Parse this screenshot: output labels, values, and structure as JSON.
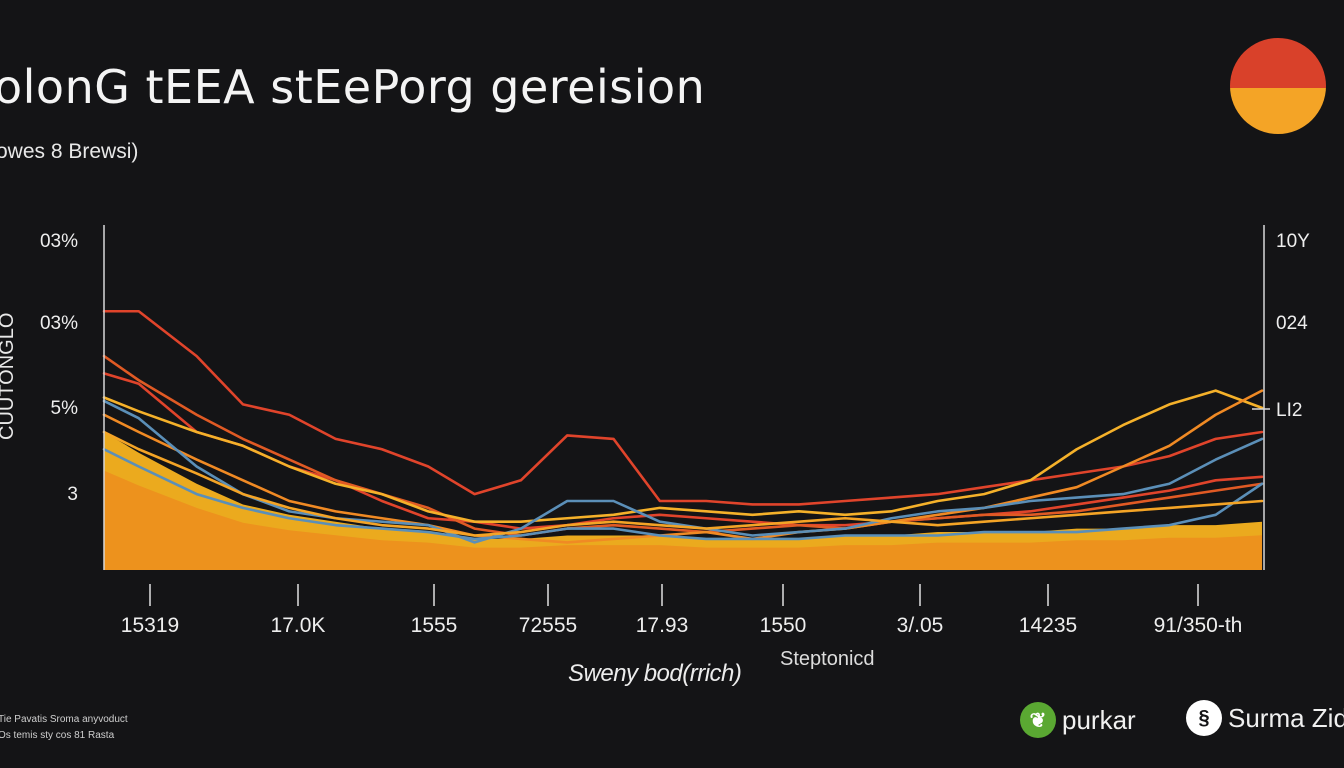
{
  "title": "OLONG TEEA STEEPORG GEREISION",
  "title_display": "olonG tEEA stEePorg gereision",
  "subtitle": "owes 8 Brewsi)",
  "y_axis_label": "CUUTONGLO",
  "x_axis_label": "Sweny bod(rrich)",
  "x_axis_label_secondary": "Steptonicd",
  "footnote_lines": [
    "Tie Pavatis Sroma anyvoduct",
    "Os temis sty cos 81 Rasta"
  ],
  "brands": [
    {
      "name": "purkar",
      "icon": "leaf-icon",
      "color": "#5aa832"
    },
    {
      "name": "Surma Zid",
      "icon": "swirl-icon",
      "color": "#ffffff"
    }
  ],
  "colors": {
    "background": "#141416",
    "sun_top": "#d9412a",
    "sun_bottom": "#f4a426",
    "red": "#e0442b",
    "orange": "#f08a24",
    "amber": "#f5b12a",
    "blue": "#5b8fb8",
    "fill_light": "#f7b21f",
    "fill_dark": "#ee8a1e"
  },
  "chart_data": {
    "type": "line",
    "title": "OLONG TEEA STEEPORG GEREISION",
    "subtitle": "owes 8 Brewsi)",
    "xlabel": "Sweny bod(rrich)",
    "ylabel": "CUUTONGLO",
    "x_tick_labels": [
      "15319",
      "17.0K",
      "1555",
      "72555",
      "17.93",
      "1550",
      "3/.05",
      "14235",
      "91/350-th"
    ],
    "y_tick_labels_left": [
      "03%",
      "03%",
      "5%",
      "3"
    ],
    "y_tick_labels_right": [
      "10Y",
      "024",
      "LI2"
    ],
    "xlim": [
      0,
      100
    ],
    "ylim": [
      0,
      100
    ],
    "grid": false,
    "legend": "none",
    "x": [
      0,
      3,
      8,
      12,
      16,
      20,
      24,
      28,
      32,
      36,
      40,
      44,
      48,
      52,
      56,
      60,
      64,
      68,
      72,
      76,
      80,
      84,
      88,
      92,
      96,
      100
    ],
    "series": [
      {
        "color": "#e0442b",
        "values": [
          75,
          75,
          62,
          48,
          45,
          38,
          35,
          30,
          22,
          26,
          39,
          38,
          20,
          20,
          19,
          19,
          20,
          21,
          22,
          24,
          26,
          28,
          30,
          33,
          38,
          40
        ]
      },
      {
        "color": "#e0442b",
        "values": [
          57,
          54,
          40,
          36,
          30,
          26,
          20,
          15,
          14,
          12,
          13,
          15,
          16,
          15,
          14,
          13,
          13,
          14,
          15,
          16,
          17,
          19,
          21,
          23,
          26,
          27
        ]
      },
      {
        "color": "#e05a24",
        "values": [
          62,
          55,
          45,
          38,
          32,
          26,
          22,
          18,
          12,
          10,
          12,
          13,
          12,
          11,
          12,
          13,
          12,
          14,
          15,
          16,
          16,
          17,
          19,
          21,
          23,
          25
        ]
      },
      {
        "color": "#f5b12a",
        "values": [
          50,
          46,
          40,
          36,
          30,
          25,
          22,
          17,
          14,
          14,
          15,
          16,
          18,
          17,
          16,
          17,
          16,
          17,
          20,
          22,
          26,
          35,
          42,
          48,
          52,
          47
        ]
      },
      {
        "color": "#f08a24",
        "values": [
          45,
          40,
          32,
          26,
          20,
          17,
          15,
          13,
          10,
          9,
          8,
          9,
          10,
          11,
          9,
          11,
          12,
          14,
          16,
          18,
          21,
          24,
          30,
          36,
          45,
          52
        ]
      },
      {
        "color": "#5b8fb8",
        "values": [
          49,
          44,
          30,
          22,
          17,
          15,
          14,
          13,
          8,
          12,
          20,
          20,
          14,
          12,
          10,
          11,
          12,
          15,
          17,
          18,
          20,
          21,
          22,
          25,
          32,
          38
        ]
      },
      {
        "color": "#5b8fb8",
        "values": [
          35,
          30,
          22,
          18,
          15,
          13,
          12,
          11,
          9,
          10,
          12,
          12,
          10,
          9,
          9,
          9,
          10,
          10,
          10,
          11,
          11,
          11,
          12,
          13,
          16,
          25
        ]
      },
      {
        "color": "#f4a426",
        "values": [
          40,
          35,
          28,
          22,
          18,
          15,
          13,
          12,
          10,
          11,
          13,
          14,
          13,
          12,
          13,
          14,
          15,
          14,
          13,
          14,
          15,
          16,
          17,
          18,
          19,
          20
        ]
      }
    ],
    "area_fill": {
      "color": "#f7b21f",
      "values": [
        40,
        34,
        25,
        19,
        16,
        14,
        12,
        11,
        9,
        9,
        10,
        10,
        10,
        9,
        9,
        9,
        10,
        10,
        11,
        11,
        11,
        12,
        12,
        13,
        13,
        14
      ]
    }
  }
}
